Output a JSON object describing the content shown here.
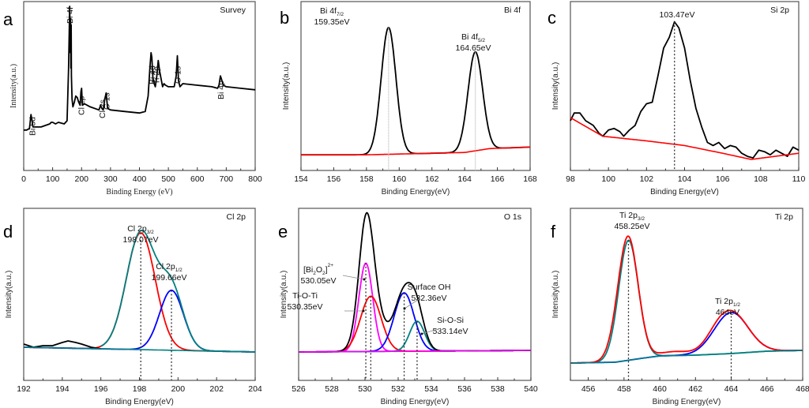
{
  "chart_data": [
    {
      "id": "a",
      "type": "line",
      "panel_letter": "a",
      "title": "Survey",
      "xlabel": "Binding Energy (eV)",
      "ylabel": "Intensity(a.u.)",
      "xlim": [
        0,
        800
      ],
      "ylim": [
        0,
        100
      ],
      "xticks": [
        0,
        100,
        200,
        300,
        400,
        500,
        600,
        700,
        800
      ],
      "font": "serif",
      "series": [
        {
          "name": "Survey",
          "color": "#000000",
          "x": [
            0,
            10,
            20,
            25,
            28,
            32,
            40,
            60,
            90,
            95,
            100,
            110,
            120,
            140,
            150,
            155,
            157,
            159,
            161,
            162,
            163,
            164,
            165,
            167,
            170,
            175,
            180,
            185,
            190,
            195,
            198,
            200,
            203,
            210,
            230,
            260,
            266,
            270,
            275,
            280,
            285,
            290,
            300,
            350,
            400,
            420,
            430,
            436,
            440,
            443,
            447,
            455,
            460,
            465,
            470,
            480,
            485,
            490,
            500,
            520,
            527,
            531,
            535,
            540,
            550,
            600,
            650,
            670,
            675,
            680,
            685,
            690,
            700,
            750,
            800
          ],
          "y": [
            20,
            20,
            21,
            30,
            27,
            22,
            22,
            22,
            24,
            25,
            25,
            24,
            25,
            24,
            26,
            60,
            80,
            100,
            70,
            92,
            60,
            88,
            55,
            40,
            35,
            38,
            42,
            41,
            38,
            36,
            45,
            47,
            36,
            37,
            35,
            33,
            36,
            34,
            33,
            40,
            44,
            34,
            33,
            32,
            31,
            32,
            42,
            60,
            70,
            67,
            52,
            48,
            55,
            65,
            58,
            48,
            50,
            49,
            48,
            48,
            55,
            68,
            52,
            48,
            50,
            49,
            48,
            47,
            49,
            55,
            52,
            49,
            48,
            47,
            46
          ]
        }
      ],
      "annotations": [
        {
          "text": "Bi 5d",
          "x": 28,
          "rotated": true
        },
        {
          "text": "Bi 4f",
          "x": 159,
          "rotated": true
        },
        {
          "text": "Cl 2p",
          "x": 198,
          "rotated": true
        },
        {
          "text": "Cl 2s",
          "x": 270,
          "rotated": true
        },
        {
          "text": "C 1s",
          "x": 285,
          "rotated": true
        },
        {
          "text": "Bi 4d",
          "x": 443,
          "rotated": true
        },
        {
          "text": "Ti 2p",
          "x": 458,
          "rotated": true
        },
        {
          "text": "O 1s",
          "x": 531,
          "rotated": true
        },
        {
          "text": "Bi 4p",
          "x": 680,
          "rotated": true
        }
      ]
    },
    {
      "id": "b",
      "type": "line",
      "panel_letter": "b",
      "title": "Bi 4f",
      "xlabel": "Binding Energy(eV)",
      "ylabel": "Intensity(a.u.)",
      "xlim": [
        154,
        168
      ],
      "ylim": [
        0,
        100
      ],
      "xticks": [
        154,
        156,
        158,
        160,
        162,
        164,
        166,
        168
      ],
      "font": "sans",
      "peaks": [
        {
          "label": "Bi 4f",
          "sub": "7/2",
          "energy_label": "159.35eV",
          "center": 159.35,
          "height": 82,
          "width": 0.45
        },
        {
          "label": "Bi 4f",
          "sub": "5/2",
          "energy_label": "164.65eV",
          "center": 164.65,
          "height": 64,
          "width": 0.45
        }
      ],
      "series": [
        {
          "name": "Envelope",
          "color": "#000000",
          "kind": "peaks_sum"
        },
        {
          "name": "Background",
          "color": "#ff0000",
          "kind": "background",
          "x": [
            154,
            158,
            160,
            162,
            164,
            165.5,
            168
          ],
          "y": [
            4,
            4,
            4.5,
            5,
            5.5,
            8,
            9
          ]
        }
      ]
    },
    {
      "id": "c",
      "type": "line",
      "panel_letter": "c",
      "title": "Si 2p",
      "xlabel": "Binding Energy(eV)",
      "ylabel": "Intensity(a.u.)",
      "xlim": [
        98,
        110
      ],
      "ylim": [
        0,
        100
      ],
      "xticks": [
        98,
        100,
        102,
        104,
        106,
        108,
        110
      ],
      "font": "sans",
      "peaks": [
        {
          "label": "",
          "sub": "",
          "energy_label": "103.47eV",
          "center": 103.47,
          "height": 88
        }
      ],
      "series": [
        {
          "name": "Si 2p",
          "color": "#000000",
          "x": [
            98,
            98.2,
            98.5,
            98.8,
            99.2,
            99.5,
            99.7,
            100,
            100.3,
            100.6,
            100.8,
            101.1,
            101.4,
            101.7,
            102,
            102.3,
            102.6,
            102.9,
            103.2,
            103.47,
            103.7,
            104,
            104.3,
            104.6,
            104.9,
            105.2,
            105.5,
            105.8,
            106.1,
            106.4,
            106.7,
            107,
            107.3,
            107.6,
            107.9,
            108.2,
            108.5,
            108.8,
            109.1,
            109.4,
            109.7,
            110
          ],
          "y": [
            26,
            31,
            31,
            26,
            23,
            18,
            16,
            20,
            21,
            19,
            16,
            20,
            23,
            32,
            37,
            38,
            55,
            73,
            80,
            90,
            86,
            73,
            52,
            34,
            22,
            12,
            10,
            12,
            8,
            10,
            9,
            5,
            3,
            2,
            7,
            6,
            4,
            7,
            5,
            3,
            9,
            7
          ]
        },
        {
          "name": "Background",
          "color": "#ff0000",
          "kind": "background",
          "x": [
            98,
            99.7,
            102,
            104,
            106,
            107.5,
            110
          ],
          "y": [
            28,
            16,
            13,
            10,
            5,
            1,
            5
          ]
        }
      ]
    },
    {
      "id": "d",
      "type": "line",
      "panel_letter": "d",
      "title": "Cl 2p",
      "xlabel": "Binding Energy(eV)",
      "ylabel": "Intensity(a.u.)",
      "xlim": [
        192,
        204
      ],
      "ylim": [
        0,
        100
      ],
      "xticks": [
        192,
        194,
        196,
        198,
        200,
        202,
        204
      ],
      "font": "sans",
      "peaks": [
        {
          "label": "Cl 2p",
          "sub": "3/2",
          "energy_label": "198.07eV",
          "center": 198.07,
          "height": 74,
          "width": 0.75,
          "color": "#ff0000"
        },
        {
          "label": "Cl 2p",
          "sub": "1/2",
          "energy_label": "199.66eV",
          "center": 199.66,
          "height": 38,
          "width": 0.62,
          "color": "#0000ff"
        }
      ],
      "series": [
        {
          "name": "Raw",
          "color": "#000000",
          "kind": "raw",
          "x": [
            192,
            192.5,
            193,
            193.5,
            194,
            194.3,
            194.7,
            195,
            195.5,
            196
          ],
          "y": [
            17,
            15,
            16,
            16,
            18,
            19,
            18,
            17,
            15,
            14
          ]
        },
        {
          "name": "Fit",
          "color": "#008080",
          "kind": "peaks_sum"
        },
        {
          "name": "Background",
          "color": "#008080",
          "kind": "background",
          "x": [
            192,
            204
          ],
          "y": [
            15,
            12
          ]
        }
      ]
    },
    {
      "id": "e",
      "type": "line",
      "panel_letter": "e",
      "title": "O 1s",
      "xlabel": "Binding Energy(eV)",
      "ylabel": "Intensity(a.u.)",
      "xlim": [
        526,
        540
      ],
      "ylim": [
        0,
        100
      ],
      "xticks": [
        526,
        528,
        530,
        532,
        534,
        536,
        538,
        540
      ],
      "font": "sans",
      "peaks": [
        {
          "label": "[Bi2O2]2+",
          "sub": "",
          "energy_label": "530.05eV",
          "center": 530.05,
          "height": 56,
          "width": 0.42,
          "color": "#ff00ff"
        },
        {
          "label": "Ti-O-Ti",
          "sub": "",
          "energy_label": "530.35eV",
          "center": 530.35,
          "height": 35,
          "width": 0.62,
          "color": "#ff0000"
        },
        {
          "label": "Surface OH",
          "sub": "",
          "energy_label": "532.36eV",
          "center": 532.36,
          "height": 37,
          "width": 0.6,
          "color": "#0000ff"
        },
        {
          "label": "Si-O-Si",
          "sub": "",
          "energy_label": "533.14eV",
          "center": 533.14,
          "height": 19,
          "width": 0.45,
          "color": "#008080"
        }
      ],
      "series": [
        {
          "name": "Envelope",
          "color": "#000000",
          "kind": "peaks_sum"
        },
        {
          "name": "Background",
          "color": "#ff00ff",
          "kind": "background",
          "x": [
            526,
            540
          ],
          "y": [
            12,
            13
          ]
        }
      ]
    },
    {
      "id": "f",
      "type": "line",
      "panel_letter": "f",
      "title": "Ti 2p",
      "xlabel": "Binding Energy(eV)",
      "ylabel": "Intensity(a.u.)",
      "xlim": [
        455,
        468
      ],
      "ylim": [
        0,
        100
      ],
      "xticks": [
        456,
        458,
        460,
        462,
        464,
        466,
        468
      ],
      "font": "sans",
      "peaks": [
        {
          "label": "Ti 2p",
          "sub": "3/2",
          "energy_label": "458.25eV",
          "center": 458.25,
          "height": 76,
          "width": 0.55,
          "color": "#008080"
        },
        {
          "label": "Ti 2p",
          "sub": "1/2",
          "energy_label": "464eV",
          "center": 464.0,
          "height": 26,
          "width": 0.95,
          "color": "#0000ff"
        }
      ],
      "series": [
        {
          "name": "Raw",
          "color": "#ff0000",
          "kind": "peaks_sum_offset"
        },
        {
          "name": "Background",
          "color": "#008080",
          "kind": "background",
          "x": [
            455,
            457.5,
            459,
            460,
            462,
            464,
            466,
            468
          ],
          "y": [
            5,
            5.5,
            8,
            9.5,
            10,
            11,
            12.5,
            13
          ]
        }
      ]
    }
  ]
}
